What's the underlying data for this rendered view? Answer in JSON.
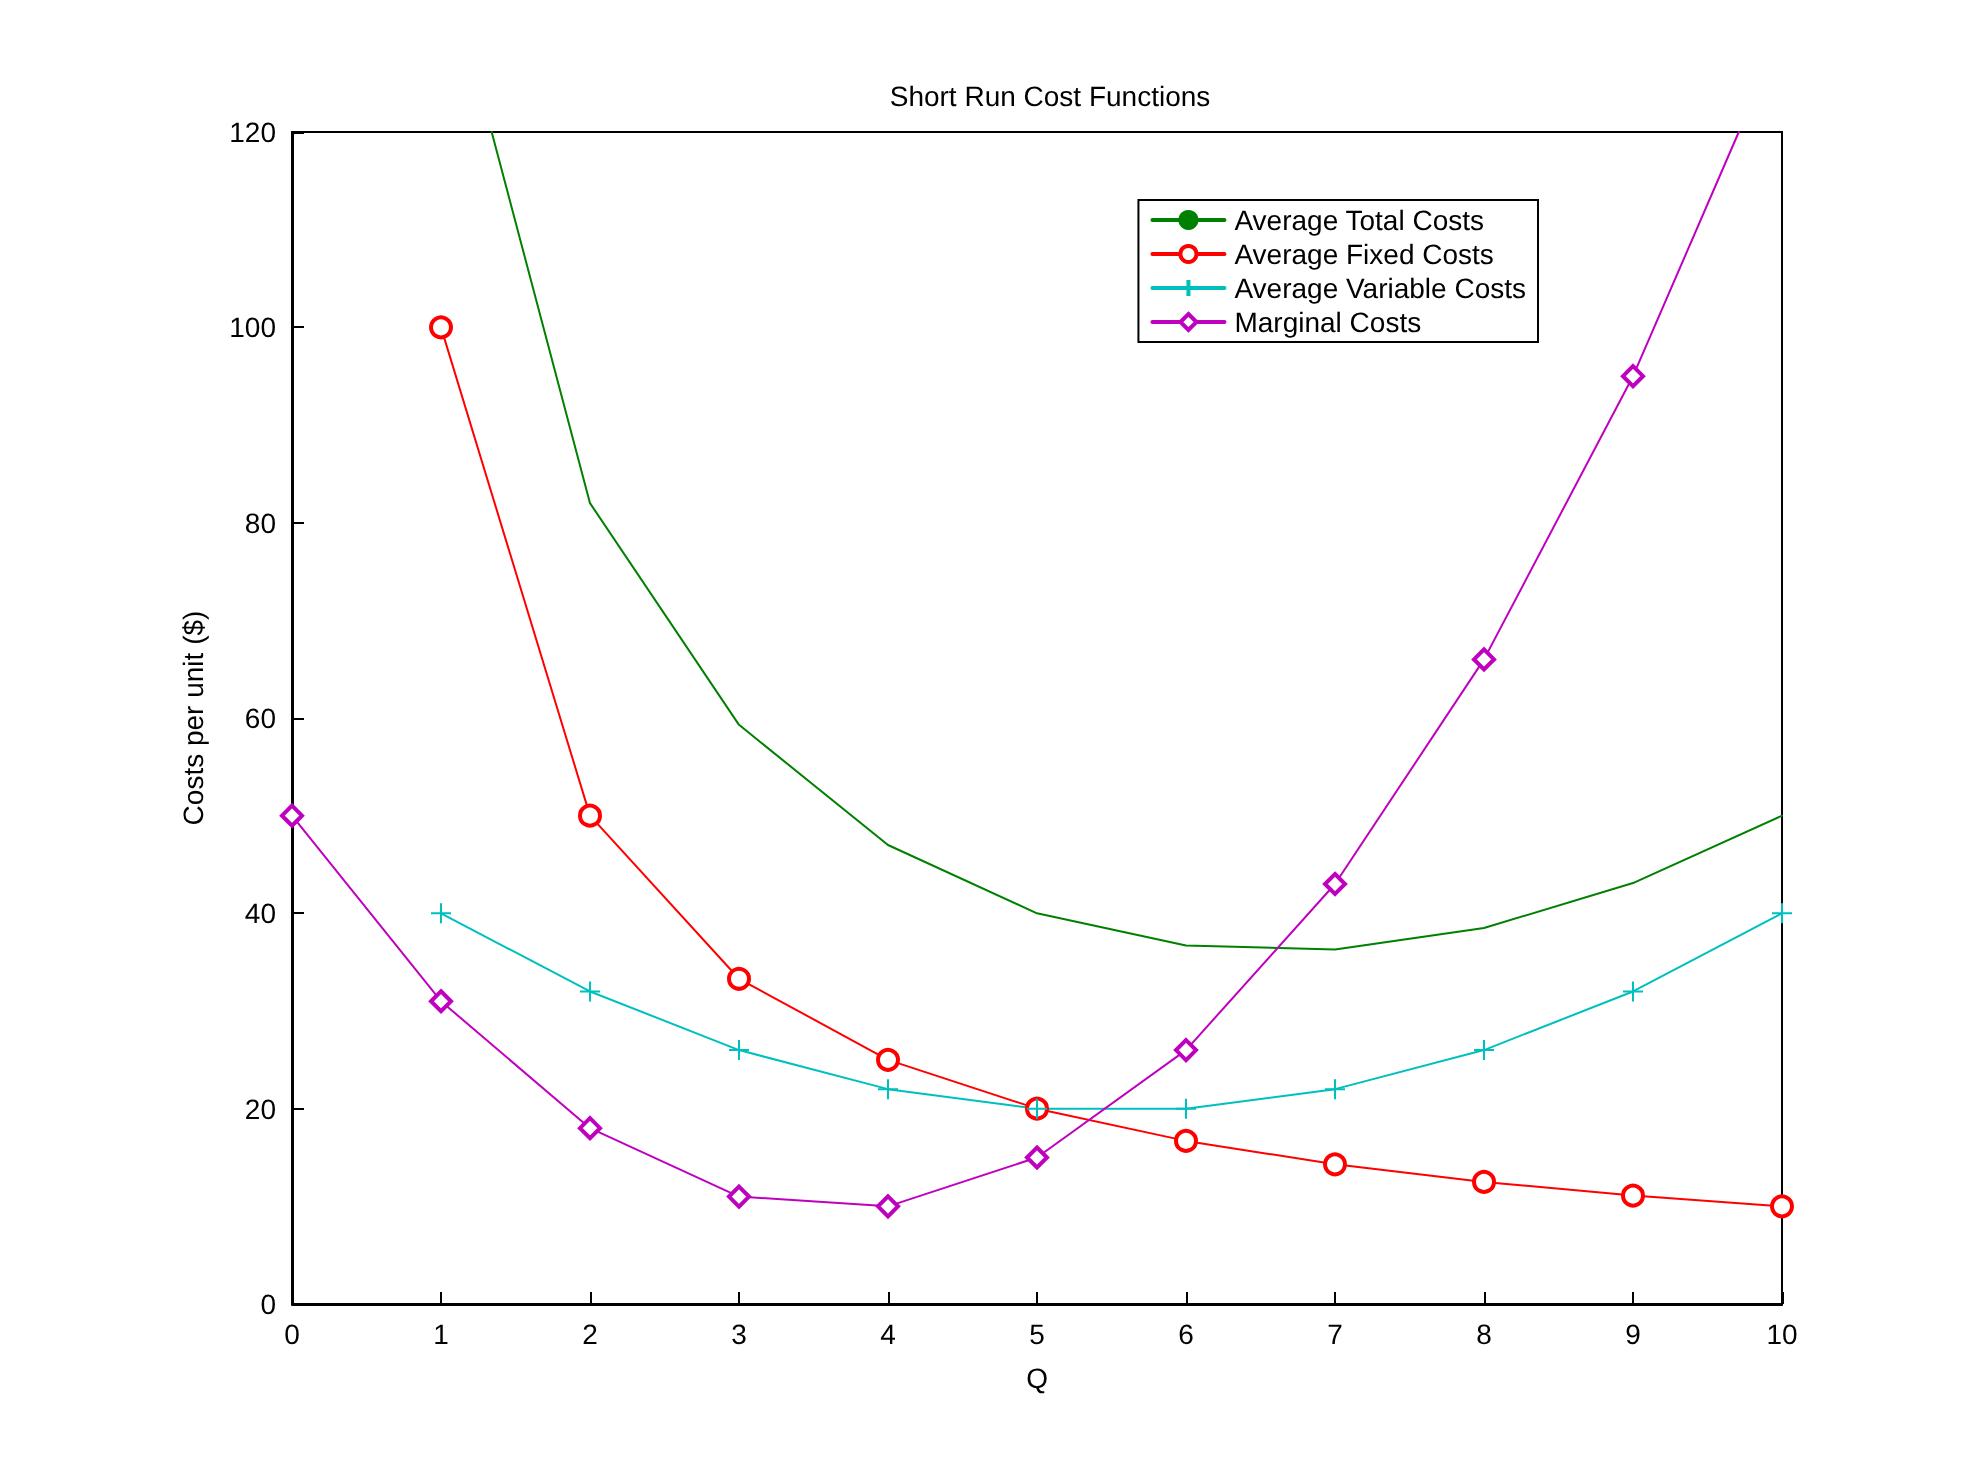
{
  "chart_data": {
    "type": "line",
    "title": "Short Run Cost Functions",
    "xlabel": "Q",
    "ylabel": "Costs per unit ($)",
    "xlim": [
      0,
      10
    ],
    "xticks": [
      0,
      1,
      2,
      3,
      4,
      5,
      6,
      7,
      8,
      9,
      10
    ],
    "ylim": [
      0,
      120
    ],
    "yticks": [
      0,
      20,
      40,
      60,
      80,
      100,
      120
    ],
    "grid": false,
    "legend": "top right",
    "line_style": "solid",
    "series": [
      {
        "name": "Average Total Costs",
        "color": "#008000",
        "marker": "none",
        "x": [
          1.34,
          2,
          3,
          4,
          5,
          6,
          7,
          8,
          9,
          10
        ],
        "values": [
          120,
          82,
          59.3,
          47,
          40,
          36.7,
          36.3,
          38.5,
          43.1,
          50
        ]
      },
      {
        "name": "Average Fixed Costs",
        "color": "#ff0000",
        "marker": "circle",
        "x": [
          1,
          2,
          3,
          4,
          5,
          6,
          7,
          8,
          9,
          10
        ],
        "values": [
          100,
          50,
          33.3,
          25,
          20,
          16.7,
          14.3,
          12.5,
          11.1,
          10
        ]
      },
      {
        "name": "Average Variable Costs",
        "color": "#00bfbf",
        "marker": "cross",
        "x": [
          1,
          2,
          3,
          4,
          5,
          6,
          7,
          8,
          9,
          10
        ],
        "values": [
          40,
          32,
          26,
          22,
          20,
          20,
          22,
          26,
          32,
          40
        ]
      },
      {
        "name": "Marginal Costs",
        "color": "#bf00bf",
        "marker": "diamond",
        "x": [
          0,
          1,
          2,
          3,
          4,
          5,
          6,
          7,
          8,
          9,
          9.71
        ],
        "values": [
          50,
          31,
          18,
          11,
          10,
          15,
          26,
          43,
          66,
          95,
          120
        ]
      }
    ]
  }
}
